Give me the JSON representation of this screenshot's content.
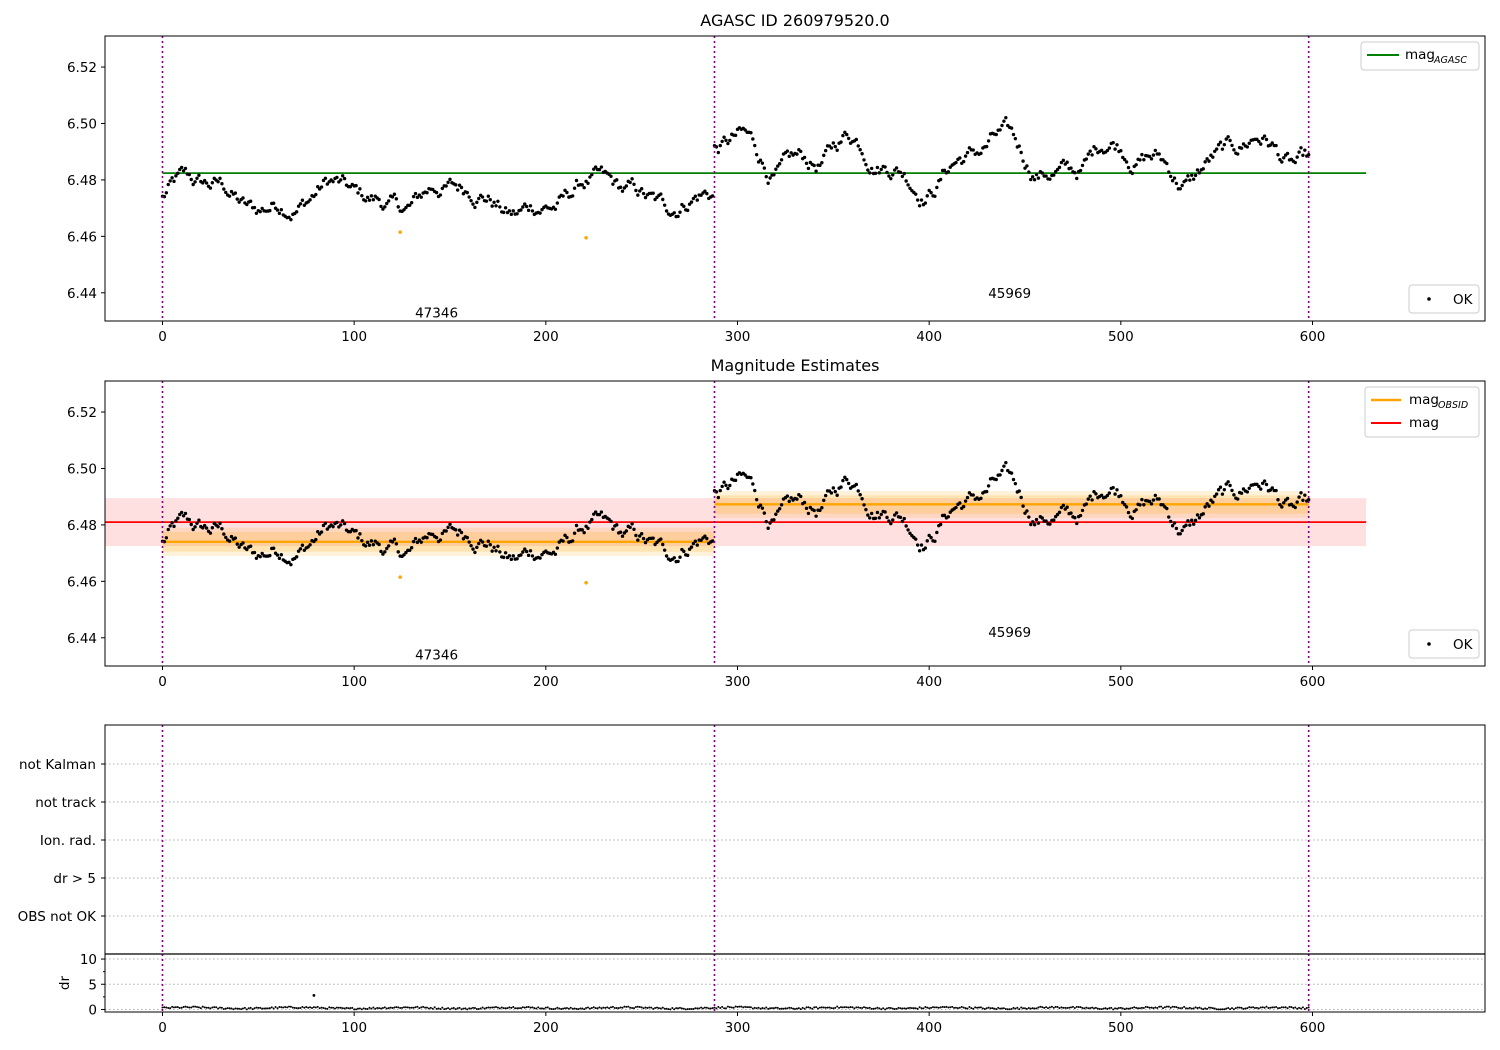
{
  "chart_data": [
    {
      "type": "scatter",
      "title": "AGASC ID 260979520.0",
      "xlim": [
        -30,
        690
      ],
      "ylim": [
        6.43,
        6.531
      ],
      "x_ticks": [
        0,
        100,
        200,
        300,
        400,
        500,
        600
      ],
      "y_ticks": [
        6.44,
        6.46,
        6.48,
        6.5,
        6.52
      ],
      "y_tick_labels": [
        "6.44",
        "6.46",
        "6.48",
        "6.50",
        "6.52"
      ],
      "obs_boundaries": [
        0,
        288,
        598
      ],
      "annotations": [
        {
          "text": "47346",
          "x": 143,
          "y": 6.433
        },
        {
          "text": "45969",
          "x": 442,
          "y": 6.44
        }
      ],
      "lines": [
        {
          "name": "mag",
          "sub": "AGASC",
          "value": 6.4824,
          "x": [
            0,
            628
          ],
          "color": "#008000"
        }
      ],
      "outliers": [
        {
          "x": 124,
          "y": 6.4615
        },
        {
          "x": 221,
          "y": 6.4595
        }
      ],
      "points_segments": [
        {
          "x_start": 0,
          "x_end": 287,
          "mean": 6.4735,
          "spread": 0.0065
        },
        {
          "x_start": 288,
          "x_end": 598,
          "mean": 6.4875,
          "spread": 0.0085
        }
      ],
      "legend_upper": [
        {
          "label": "mag",
          "sub": "AGASC",
          "color": "#008000"
        }
      ],
      "legend_lower": [
        {
          "label": "OK"
        }
      ],
      "legend_position": "upper right / lower right"
    },
    {
      "type": "scatter",
      "title": "Magnitude Estimates",
      "xlim": [
        -30,
        690
      ],
      "ylim": [
        6.43,
        6.531
      ],
      "x_ticks": [
        0,
        100,
        200,
        300,
        400,
        500,
        600
      ],
      "y_ticks": [
        6.44,
        6.46,
        6.48,
        6.5,
        6.52
      ],
      "y_tick_labels": [
        "6.44",
        "6.46",
        "6.48",
        "6.50",
        "6.52"
      ],
      "obs_boundaries": [
        0,
        288,
        598
      ],
      "annotations": [
        {
          "text": "47346",
          "x": 143,
          "y": 6.434
        },
        {
          "text": "45969",
          "x": 442,
          "y": 6.442
        }
      ],
      "lines": [
        {
          "name": "mag",
          "sub": "OBSID",
          "segments": [
            {
              "x": [
                0,
                288
              ],
              "value": 6.474,
              "band": [
                6.4705,
                6.4775
              ],
              "band2": [
                6.469,
                6.479
              ]
            },
            {
              "x": [
                288,
                598
              ],
              "value": 6.4873,
              "band": [
                6.484,
                6.4905
              ],
              "band2": [
                6.4825,
                6.492
              ]
            }
          ],
          "color": "#ffa500"
        },
        {
          "name": "mag",
          "x": [
            -30,
            628
          ],
          "value": 6.481,
          "band": [
            6.4725,
            6.4895
          ],
          "color": "#ff0000"
        }
      ],
      "outliers": [
        {
          "x": 124,
          "y": 6.4615
        },
        {
          "x": 221,
          "y": 6.4595
        }
      ],
      "legend_upper": [
        {
          "label": "mag",
          "sub": "OBSID",
          "color": "#ffa500"
        },
        {
          "label": "mag",
          "color": "#ff0000"
        }
      ],
      "legend_lower": [
        {
          "label": "OK"
        }
      ],
      "legend_position": "upper right / lower right"
    },
    {
      "type": "scatter",
      "xlim": [
        -30,
        690
      ],
      "flag_labels": [
        "not Kalman",
        "not track",
        "Ion. rad.",
        "dr > 5",
        "OBS not OK"
      ],
      "obs_boundaries": [
        0,
        288,
        598
      ],
      "dr_panel": {
        "ylabel": "dr",
        "ylim": [
          -0.5,
          11
        ],
        "y_ticks": [
          0,
          5,
          10
        ],
        "x_ticks": [
          0,
          100,
          200,
          300,
          400,
          500,
          600
        ],
        "typical_value": 0.3,
        "spike": {
          "x": 79,
          "y": 2.8
        }
      }
    }
  ]
}
